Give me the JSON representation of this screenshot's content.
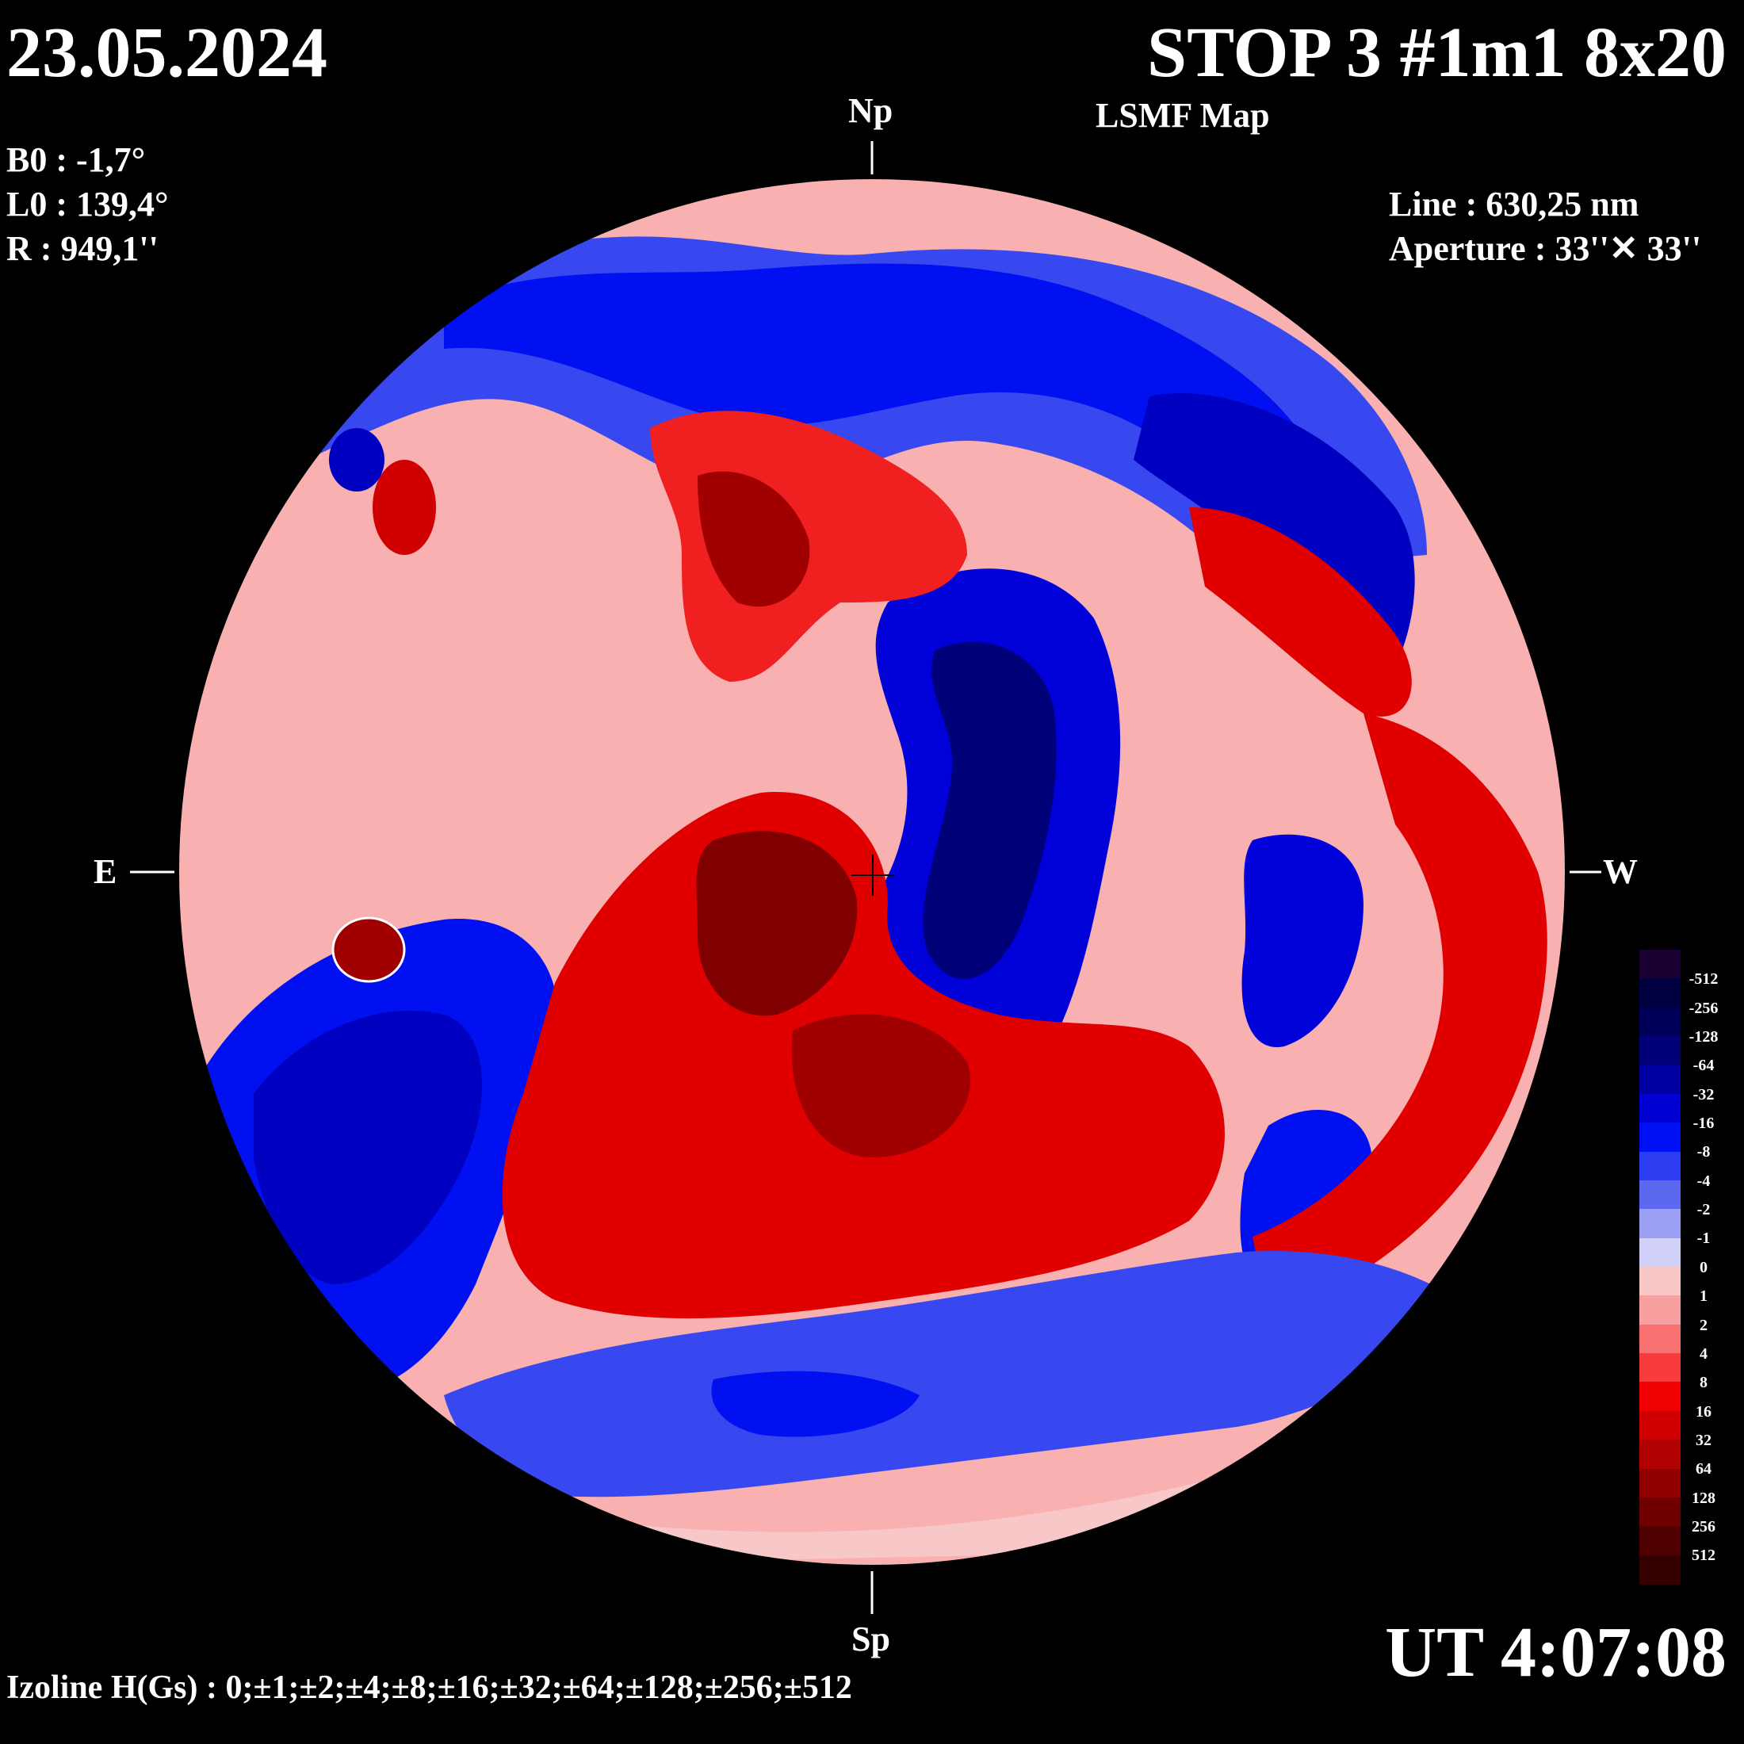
{
  "header": {
    "date": "23.05.2024",
    "title": "STOP 3 #1m1 8x20",
    "subtitle": "LSMF  Map",
    "b0": "B0 : -1,7°",
    "l0": "L0 : 139,4°",
    "r": "R  : 949,1''",
    "line": "Line :  630,25 nm",
    "aperture": "Aperture : 33''✕ 33''"
  },
  "directions": {
    "north": "Np",
    "south": "Sp",
    "east": "E",
    "west": "W"
  },
  "footer": {
    "time": "UT 4:07:08",
    "izoline": "Izoline H(Gs) : 0;±1;±2;±4;±8;±16;±32;±64;±128;±256;±512"
  },
  "legend": [
    {
      "label": "-512",
      "color": "#1a0033"
    },
    {
      "label": "-256",
      "color": "#000040"
    },
    {
      "label": "-128",
      "color": "#00005a"
    },
    {
      "label": "-64",
      "color": "#000078"
    },
    {
      "label": "-32",
      "color": "#0000a0"
    },
    {
      "label": "-16",
      "color": "#0000d2"
    },
    {
      "label": "-8",
      "color": "#0010f5"
    },
    {
      "label": "-4",
      "color": "#2c3cf0"
    },
    {
      "label": "-2",
      "color": "#5c68f0"
    },
    {
      "label": "-1",
      "color": "#9ca0f4"
    },
    {
      "label": "0",
      "color": "#d0d0f8"
    },
    {
      "label": "1",
      "color": "#f8c8c8"
    },
    {
      "label": "2",
      "color": "#f8a0a0"
    },
    {
      "label": "4",
      "color": "#f87070"
    },
    {
      "label": "8",
      "color": "#f83c3c"
    },
    {
      "label": "16",
      "color": "#f00000"
    },
    {
      "label": "32",
      "color": "#d00000"
    },
    {
      "label": "64",
      "color": "#b00000"
    },
    {
      "label": "128",
      "color": "#900000"
    },
    {
      "label": "256",
      "color": "#700000"
    },
    {
      "label": "512",
      "color": "#500000"
    },
    {
      "label": "",
      "color": "#350000"
    }
  ],
  "colors": {
    "background": "#000000",
    "text": "#ffffff",
    "zero_line": "#ffffff"
  }
}
